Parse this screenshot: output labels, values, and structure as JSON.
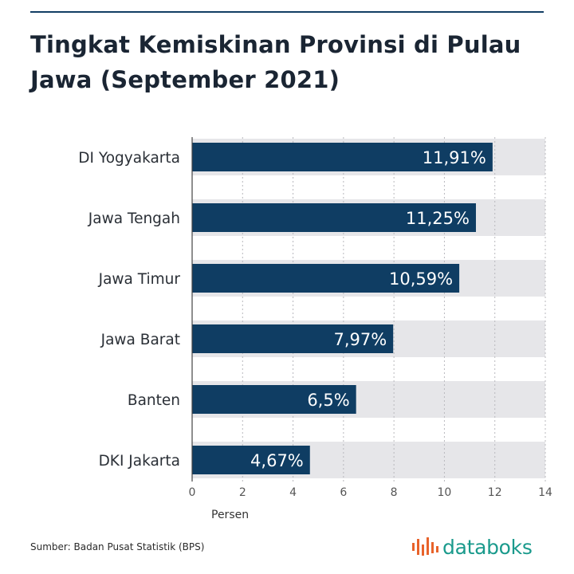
{
  "title": "Tingkat Kemiskinan Provinsi di Pulau Jawa (September 2021)",
  "source": "Sumber: Badan Pusat Statistik (BPS)",
  "brand": "databoks",
  "colors": {
    "bar": "#0f3d63",
    "band": "#e6e6e9",
    "label_text": "#ffffff",
    "axis_text": "#555555",
    "brand": "#1a9a8c"
  },
  "chart_data": {
    "type": "bar",
    "orientation": "horizontal",
    "categories": [
      "DI Yogyakarta",
      "Jawa Tengah",
      "Jawa Timur",
      "Jawa Barat",
      "Banten",
      "DKI Jakarta"
    ],
    "values": [
      11.91,
      11.25,
      10.59,
      7.97,
      6.5,
      4.67
    ],
    "value_labels": [
      "11,91%",
      "11,25%",
      "10,59%",
      "7,97%",
      "6,5%",
      "4,67%"
    ],
    "xlabel": "Persen",
    "ylabel": "",
    "xlim": [
      0,
      14
    ],
    "xticks": [
      0,
      2,
      4,
      6,
      8,
      10,
      12,
      14
    ],
    "grid": true
  }
}
